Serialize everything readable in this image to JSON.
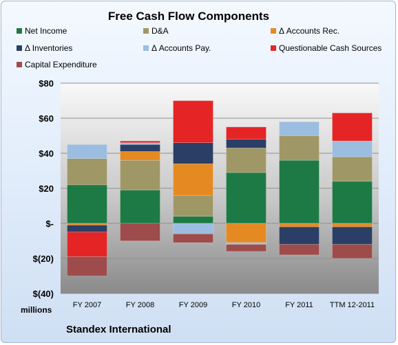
{
  "chart_data": {
    "type": "bar",
    "stacked": true,
    "title": "Free Cash Flow Components",
    "categories": [
      "FY 2007",
      "FY 2008",
      "FY 2009",
      "FY 2010",
      "FY 2011",
      "TTM 12-2011"
    ],
    "ylim": [
      -40,
      80
    ],
    "yticks": [
      "$80",
      "$60",
      "$40",
      "$20",
      "$-",
      "$(20)",
      "$(40)"
    ],
    "ylabel": "millions",
    "grid": true,
    "legend_position": "top",
    "series": [
      {
        "name": "Net Income",
        "color": "#1e7a45",
        "values": [
          22,
          19,
          4,
          29,
          36,
          24
        ]
      },
      {
        "name": "D&A",
        "color": "#a09766",
        "values": [
          15,
          17,
          12,
          14,
          14,
          14
        ]
      },
      {
        "name": "Δ Accounts Rec.",
        "color": "#e58a22",
        "values": [
          -1,
          5,
          18,
          -11,
          -2,
          -2
        ]
      },
      {
        "name": "Δ Inventories",
        "color": "#2b3f66",
        "values": [
          -4,
          4,
          12,
          5,
          -10,
          -10
        ]
      },
      {
        "name": "Δ Accounts Pay.",
        "color": "#9bbde0",
        "values": [
          8,
          1,
          -6,
          -1,
          8,
          9
        ]
      },
      {
        "name": "Questionable Cash Sources",
        "color": "#e52525",
        "values": [
          -14,
          1,
          24,
          7,
          0,
          16
        ]
      },
      {
        "name": "Capital Expenditure",
        "color": "#9e4b4b",
        "values": [
          -11,
          -10,
          -5,
          -4,
          -6,
          -8
        ]
      }
    ]
  },
  "footer": "Standex International"
}
